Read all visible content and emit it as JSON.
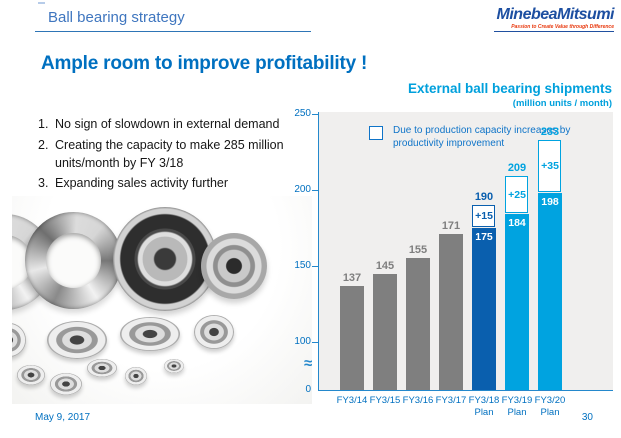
{
  "header": {
    "title": "Ball bearing strategy"
  },
  "logo": {
    "name": "MinebeaMitsumi",
    "tagline": "Passion to Create Value through Difference"
  },
  "slide": {
    "title": "Ample room to improve profitability !",
    "bullets": [
      {
        "num": "1.",
        "text": "No sign of slowdown in external demand"
      },
      {
        "num": "2.",
        "text": "Creating the capacity to make 285 million units/month by FY 3/18"
      },
      {
        "num": "3.",
        "text": "Expanding sales activity further"
      }
    ]
  },
  "footer": {
    "date": "May 9, 2017",
    "page": "30"
  },
  "chart_data": {
    "type": "bar",
    "title": "External ball bearing shipments",
    "subtitle": "(million units / month)",
    "legend": "Due to production capacity increases by productivity improvement",
    "categories": [
      "FY3/14",
      "FY3/15",
      "FY3/16",
      "FY3/17",
      "FY3/18 Plan",
      "FY3/19 Plan",
      "FY3/20 Plan"
    ],
    "series": [
      {
        "name": "shipments",
        "values": [
          137,
          145,
          155,
          171,
          175,
          184,
          198
        ]
      },
      {
        "name": "increase by productivity improvement",
        "values": [
          null,
          null,
          null,
          null,
          15,
          25,
          35
        ]
      }
    ],
    "totals": [
      137,
      145,
      155,
      171,
      190,
      209,
      233
    ],
    "increase_labels": [
      "",
      "",
      "",
      "",
      "+15",
      "+25",
      "+35"
    ],
    "bar_colors": [
      "gray",
      "gray",
      "gray",
      "gray",
      "darkblue",
      "cyan",
      "cyan"
    ],
    "colors": {
      "gray": "#7f7f7f",
      "darkblue": "#0a5fae",
      "cyan": "#00a3e0",
      "axis": "#2488cc",
      "tick_label": "#0070c0"
    },
    "yticks": [
      0,
      100,
      150,
      200,
      250
    ],
    "ylim": [
      0,
      250
    ],
    "axis_break": true,
    "legend_position": "top-inside",
    "grid": false
  }
}
